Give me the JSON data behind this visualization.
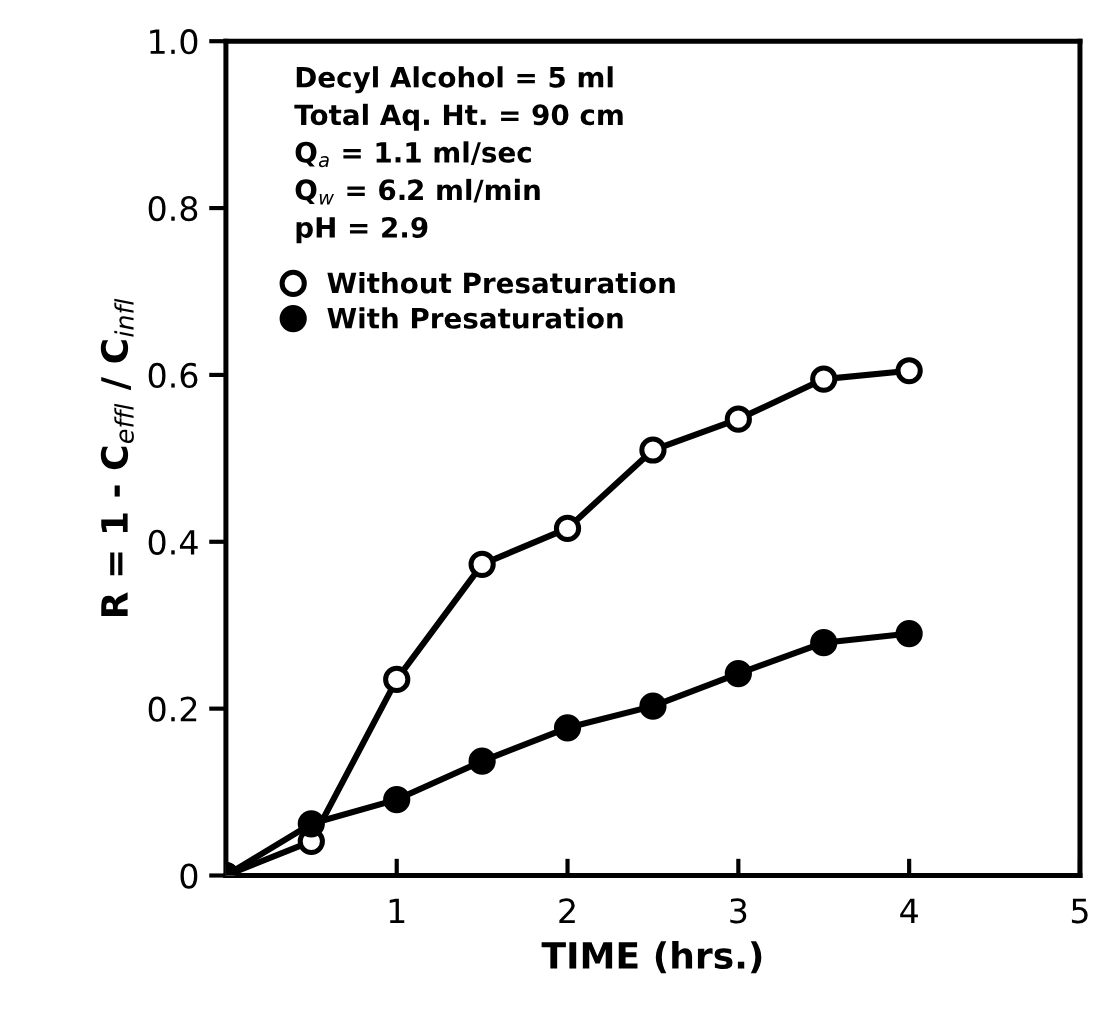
{
  "chart_data": {
    "type": "line",
    "xlabel": "TIME (hrs.)",
    "ylabel": "R = 1 - C$_{effl}$ / C$_{infl}$",
    "xlim": [
      0,
      5
    ],
    "ylim": [
      0,
      1
    ],
    "xticks": [
      1,
      2,
      3,
      4,
      5
    ],
    "yticks": [
      0,
      0.2,
      0.4,
      0.6,
      0.8,
      {
        "value": 1,
        "label": "1.0"
      }
    ],
    "grid": false,
    "legend": "top left",
    "marker": "circle",
    "line_style": "solid",
    "annotations": [
      "Decyl Alcohol = 5 ml",
      "Total Aq. Ht. = 90 cm",
      "Q$_{a}$ = 1.1 ml/sec",
      "Q$_{w}$ = 6.2 ml/min",
      "pH = 2.9"
    ],
    "series": [
      {
        "name": "Without Presaturation",
        "color": "#000000",
        "colors": [
          "#ffffff",
          "#ffffff",
          "#ffffff",
          "#ffffff",
          "#ffffff",
          "#ffffff",
          "#ffffff",
          "#ffffff",
          "#ffffff"
        ],
        "x": [
          0,
          0.5,
          1,
          1.5,
          2,
          2.5,
          3,
          3.5,
          4
        ],
        "values": [
          0,
          0.041,
          0.235,
          0.373,
          0.416,
          0.51,
          0.547,
          0.595,
          0.605
        ]
      },
      {
        "name": "With Presaturation",
        "color": "#000000",
        "colors": [
          "#000000",
          "#000000",
          "#000000",
          "#000000",
          "#000000",
          "#000000",
          "#000000",
          "#000000",
          "#000000"
        ],
        "x": [
          0,
          0.5,
          1,
          1.5,
          2,
          2.5,
          3,
          3.5,
          4
        ],
        "values": [
          0,
          0.062,
          0.091,
          0.137,
          0.177,
          0.203,
          0.242,
          0.279,
          0.29
        ]
      }
    ]
  }
}
